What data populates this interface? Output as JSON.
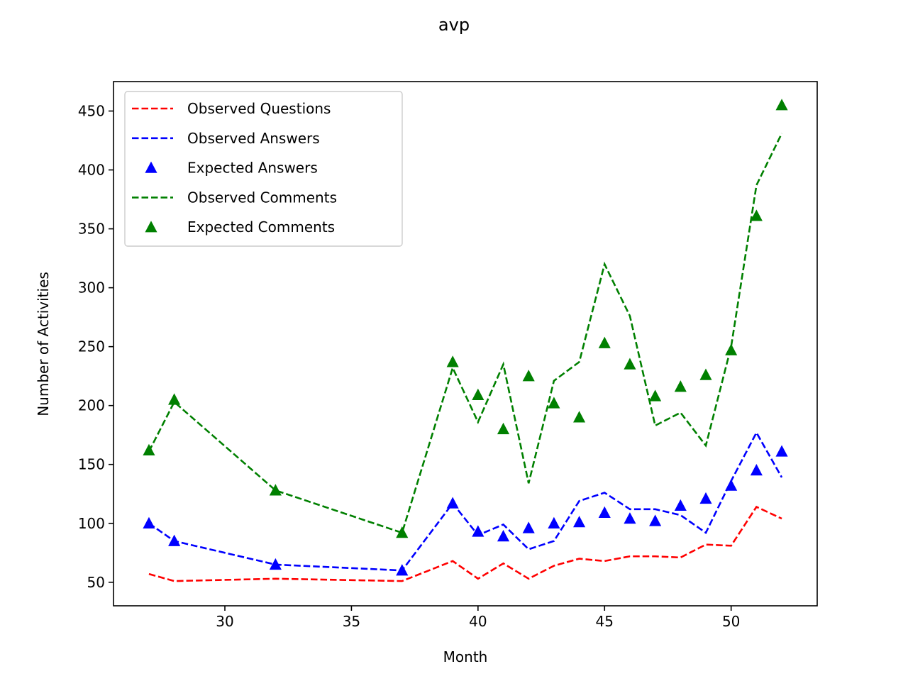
{
  "chart_data": {
    "type": "line",
    "title": "avp",
    "xlabel": "Month",
    "ylabel": "Number of Activities",
    "xlim": [
      25.6,
      53.4
    ],
    "ylim": [
      30,
      475
    ],
    "xticks": [
      30,
      35,
      40,
      45,
      50
    ],
    "yticks": [
      50,
      100,
      150,
      200,
      250,
      300,
      350,
      400,
      450
    ],
    "x": [
      27,
      28,
      32,
      37,
      39,
      40,
      41,
      42,
      43,
      44,
      45,
      46,
      47,
      48,
      49,
      50,
      51,
      52
    ],
    "legend_position": "upper-left",
    "grid": false,
    "series": [
      {
        "name": "Observed Questions",
        "style": "dashed-line",
        "color": "#ff0000",
        "values": [
          57,
          51,
          53,
          51,
          68,
          53,
          66,
          53,
          64,
          70,
          68,
          72,
          72,
          71,
          82,
          81,
          114,
          104
        ]
      },
      {
        "name": "Observed Answers",
        "style": "dashed-line",
        "color": "#0000ff",
        "values": [
          100,
          85,
          65,
          60,
          117,
          90,
          99,
          78,
          85,
          119,
          126,
          112,
          112,
          107,
          92,
          136,
          177,
          139
        ]
      },
      {
        "name": "Expected Answers",
        "style": "triangle-marker",
        "color": "#0000ff",
        "values": [
          100,
          85,
          65,
          60,
          117,
          93,
          89,
          96,
          100,
          101,
          109,
          104,
          102,
          115,
          121,
          132,
          145,
          161
        ]
      },
      {
        "name": "Observed Comments",
        "style": "dashed-line",
        "color": "#008000",
        "values": [
          161,
          203,
          128,
          92,
          232,
          186,
          235,
          134,
          221,
          237,
          320,
          276,
          183,
          194,
          166,
          250,
          387,
          431
        ]
      },
      {
        "name": "Expected Comments",
        "style": "triangle-marker",
        "color": "#008000",
        "values": [
          162,
          205,
          128,
          92,
          237,
          209,
          180,
          225,
          202,
          190,
          253,
          235,
          208,
          216,
          226,
          247,
          361,
          455
        ]
      }
    ]
  }
}
